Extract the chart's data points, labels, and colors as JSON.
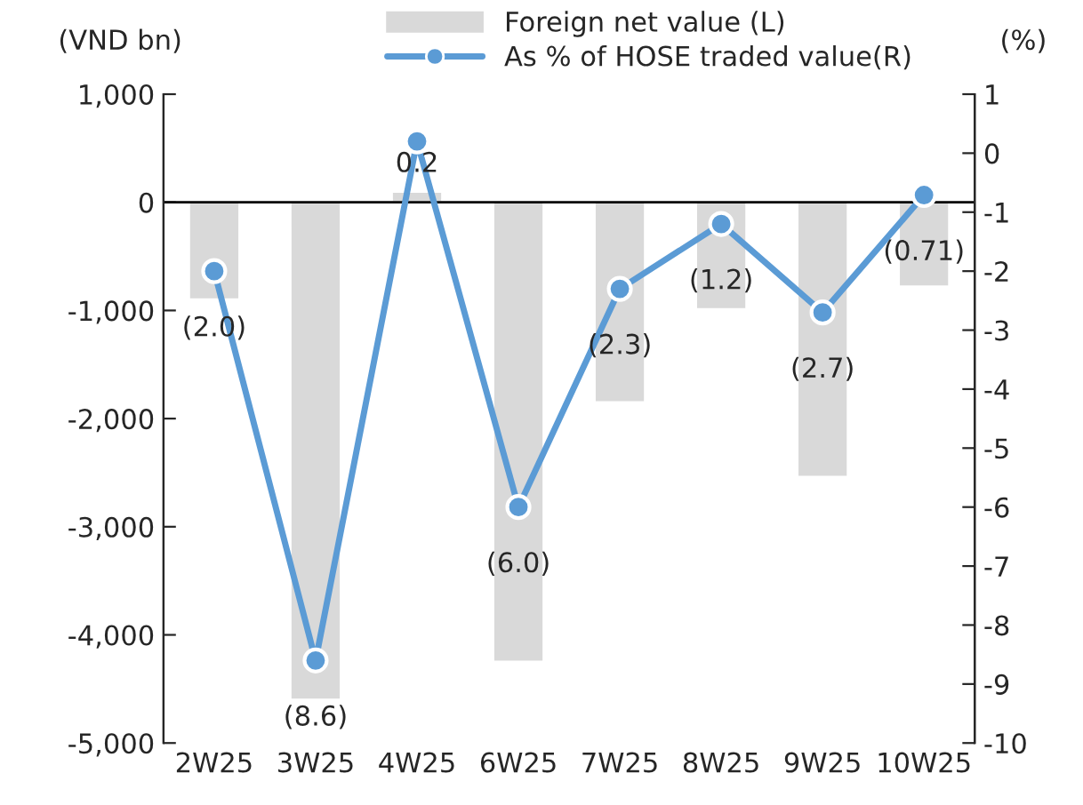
{
  "chart_data": {
    "type": "bar",
    "ylabel": "(VND bn)",
    "y2label": "(%)",
    "categories": [
      "2W25",
      "3W25",
      "4W25",
      "6W25",
      "7W25",
      "8W25",
      "9W25",
      "10W25"
    ],
    "series": [
      {
        "name": "Foreign net value (L)",
        "color": "#d9d9d9",
        "values": [
          -900,
          -4600,
          100,
          -4250,
          -1850,
          -990,
          -2540,
          -780
        ]
      },
      {
        "name": "As % of HOSE traded value(R)",
        "type": "line",
        "axis": "y2",
        "color": "#5b9bd5",
        "marker": "circle",
        "values": [
          -2.0,
          -8.6,
          0.2,
          -6.0,
          -2.3,
          -1.2,
          -2.7,
          -0.71
        ],
        "value_labels": [
          "(2.0)",
          "(8.6)",
          "0.2",
          "(6.0)",
          "(2.3)",
          "(1.2)",
          "(2.7)",
          "(0.71)"
        ]
      }
    ],
    "ylim": [
      -5000,
      1000
    ],
    "yticks": [
      {
        "value": -5000,
        "label": "-5,000"
      },
      {
        "value": -4000,
        "label": "-4,000"
      },
      {
        "value": -3000,
        "label": "-3,000"
      },
      {
        "value": -2000,
        "label": "-2,000"
      },
      {
        "value": -1000,
        "label": "-1,000"
      },
      0,
      {
        "value": 1000,
        "label": "1,000"
      }
    ],
    "y2lim": [
      -10,
      1
    ],
    "y2ticks": [
      -10,
      -9,
      -8,
      -7,
      -6,
      -5,
      -4,
      -3,
      -2,
      -1,
      0,
      1
    ],
    "ref_lines": [
      {
        "axis": "y",
        "value": 0,
        "color": "#000000"
      }
    ],
    "legend": "top"
  }
}
